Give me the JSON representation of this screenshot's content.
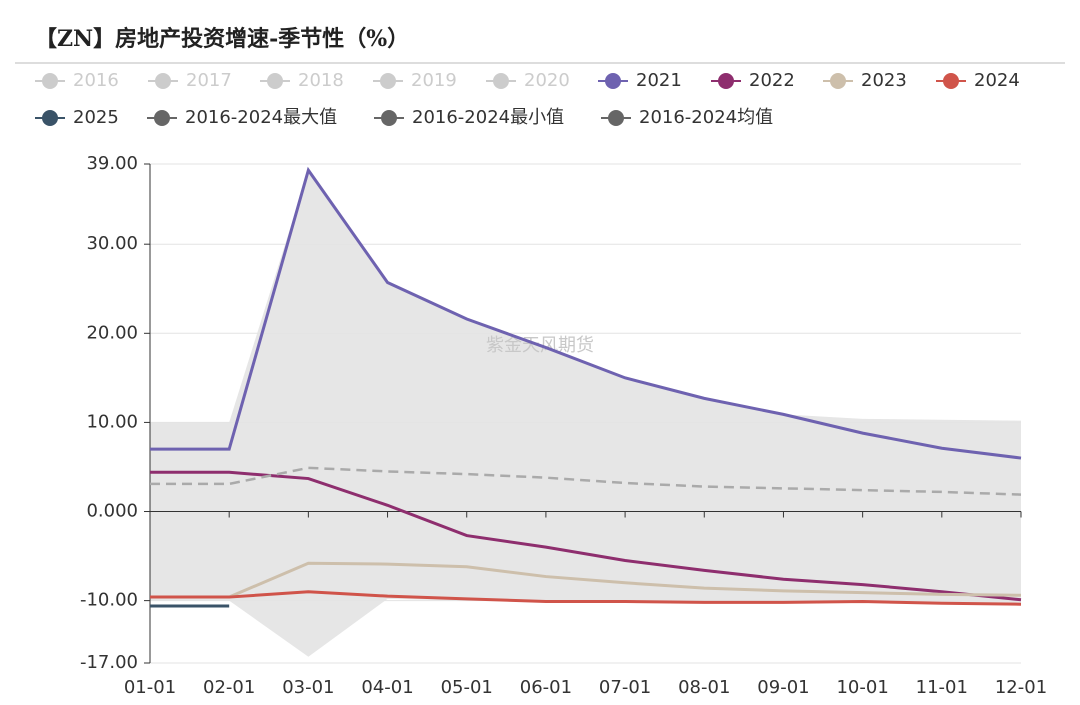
{
  "chart_data": {
    "type": "line",
    "title": "【ZN】房地产投资增速-季节性（%）",
    "watermark": "紫金天风期货",
    "categories": [
      "01-01",
      "02-01",
      "03-01",
      "04-01",
      "05-01",
      "06-01",
      "07-01",
      "08-01",
      "09-01",
      "10-01",
      "11-01",
      "12-01"
    ],
    "ylim": [
      -17,
      39
    ],
    "yticks": [
      {
        "value": 39,
        "label": "39.00"
      },
      {
        "value": 30,
        "label": "30.00"
      },
      {
        "value": 20,
        "label": "20.00"
      },
      {
        "value": 10,
        "label": "10.00"
      },
      {
        "value": 0,
        "label": "0.000"
      },
      {
        "value": -10,
        "label": "-10.00"
      },
      {
        "value": -17,
        "label": "-17.00"
      }
    ],
    "grid": true,
    "legend": "top",
    "series": [
      {
        "name": "2016",
        "color": "#cccccc",
        "hidden": true
      },
      {
        "name": "2017",
        "color": "#cccccc",
        "hidden": true
      },
      {
        "name": "2018",
        "color": "#cccccc",
        "hidden": true
      },
      {
        "name": "2019",
        "color": "#cccccc",
        "hidden": true
      },
      {
        "name": "2020",
        "color": "#cccccc",
        "hidden": true
      },
      {
        "name": "2021",
        "color": "#6e62b0",
        "values": [
          7,
          7,
          38.3,
          25.7,
          21.6,
          18.4,
          15.0,
          12.7,
          10.9,
          8.8,
          7.1,
          6.0
        ]
      },
      {
        "name": "2022",
        "color": "#8e2e6e",
        "values": [
          4.4,
          4.4,
          3.7,
          0.7,
          -2.7,
          -4.0,
          -5.5,
          -6.6,
          -7.6,
          -8.2,
          -9.0,
          -9.9
        ]
      },
      {
        "name": "2023",
        "color": "#cdbfab",
        "values": [
          -9.6,
          -9.6,
          -5.8,
          -5.9,
          -6.2,
          -7.3,
          -8.0,
          -8.6,
          -8.9,
          -9.1,
          -9.3,
          -9.4
        ]
      },
      {
        "name": "2024",
        "color": "#d0544a",
        "values": [
          -9.6,
          -9.6,
          -9.0,
          -9.5,
          -9.8,
          -10.1,
          -10.1,
          -10.2,
          -10.2,
          -10.1,
          -10.3,
          -10.4
        ]
      },
      {
        "name": "2025",
        "color": "#3a5368",
        "values": [
          -10.6,
          -10.6,
          null,
          null,
          null,
          null,
          null,
          null,
          null,
          null,
          null,
          null
        ]
      },
      {
        "name": "2016-2024最大值",
        "color": "#666666",
        "role": "band-max",
        "values": [
          10,
          10,
          38.3,
          25.7,
          21.6,
          18.4,
          15.0,
          12.7,
          10.9,
          10.4,
          10.3,
          10.2
        ]
      },
      {
        "name": "2016-2024最小值",
        "color": "#666666",
        "role": "band-min",
        "values": [
          -10.0,
          -10.0,
          -16.3,
          -9.8,
          -10.0,
          -10.1,
          -10.1,
          -10.2,
          -10.2,
          -10.1,
          -10.3,
          -10.4
        ]
      },
      {
        "name": "2016-2024均值",
        "color": "#666666",
        "role": "mean",
        "values": [
          3.1,
          3.1,
          4.9,
          4.5,
          4.2,
          3.8,
          3.2,
          2.8,
          2.6,
          2.4,
          2.2,
          1.9
        ]
      }
    ]
  }
}
